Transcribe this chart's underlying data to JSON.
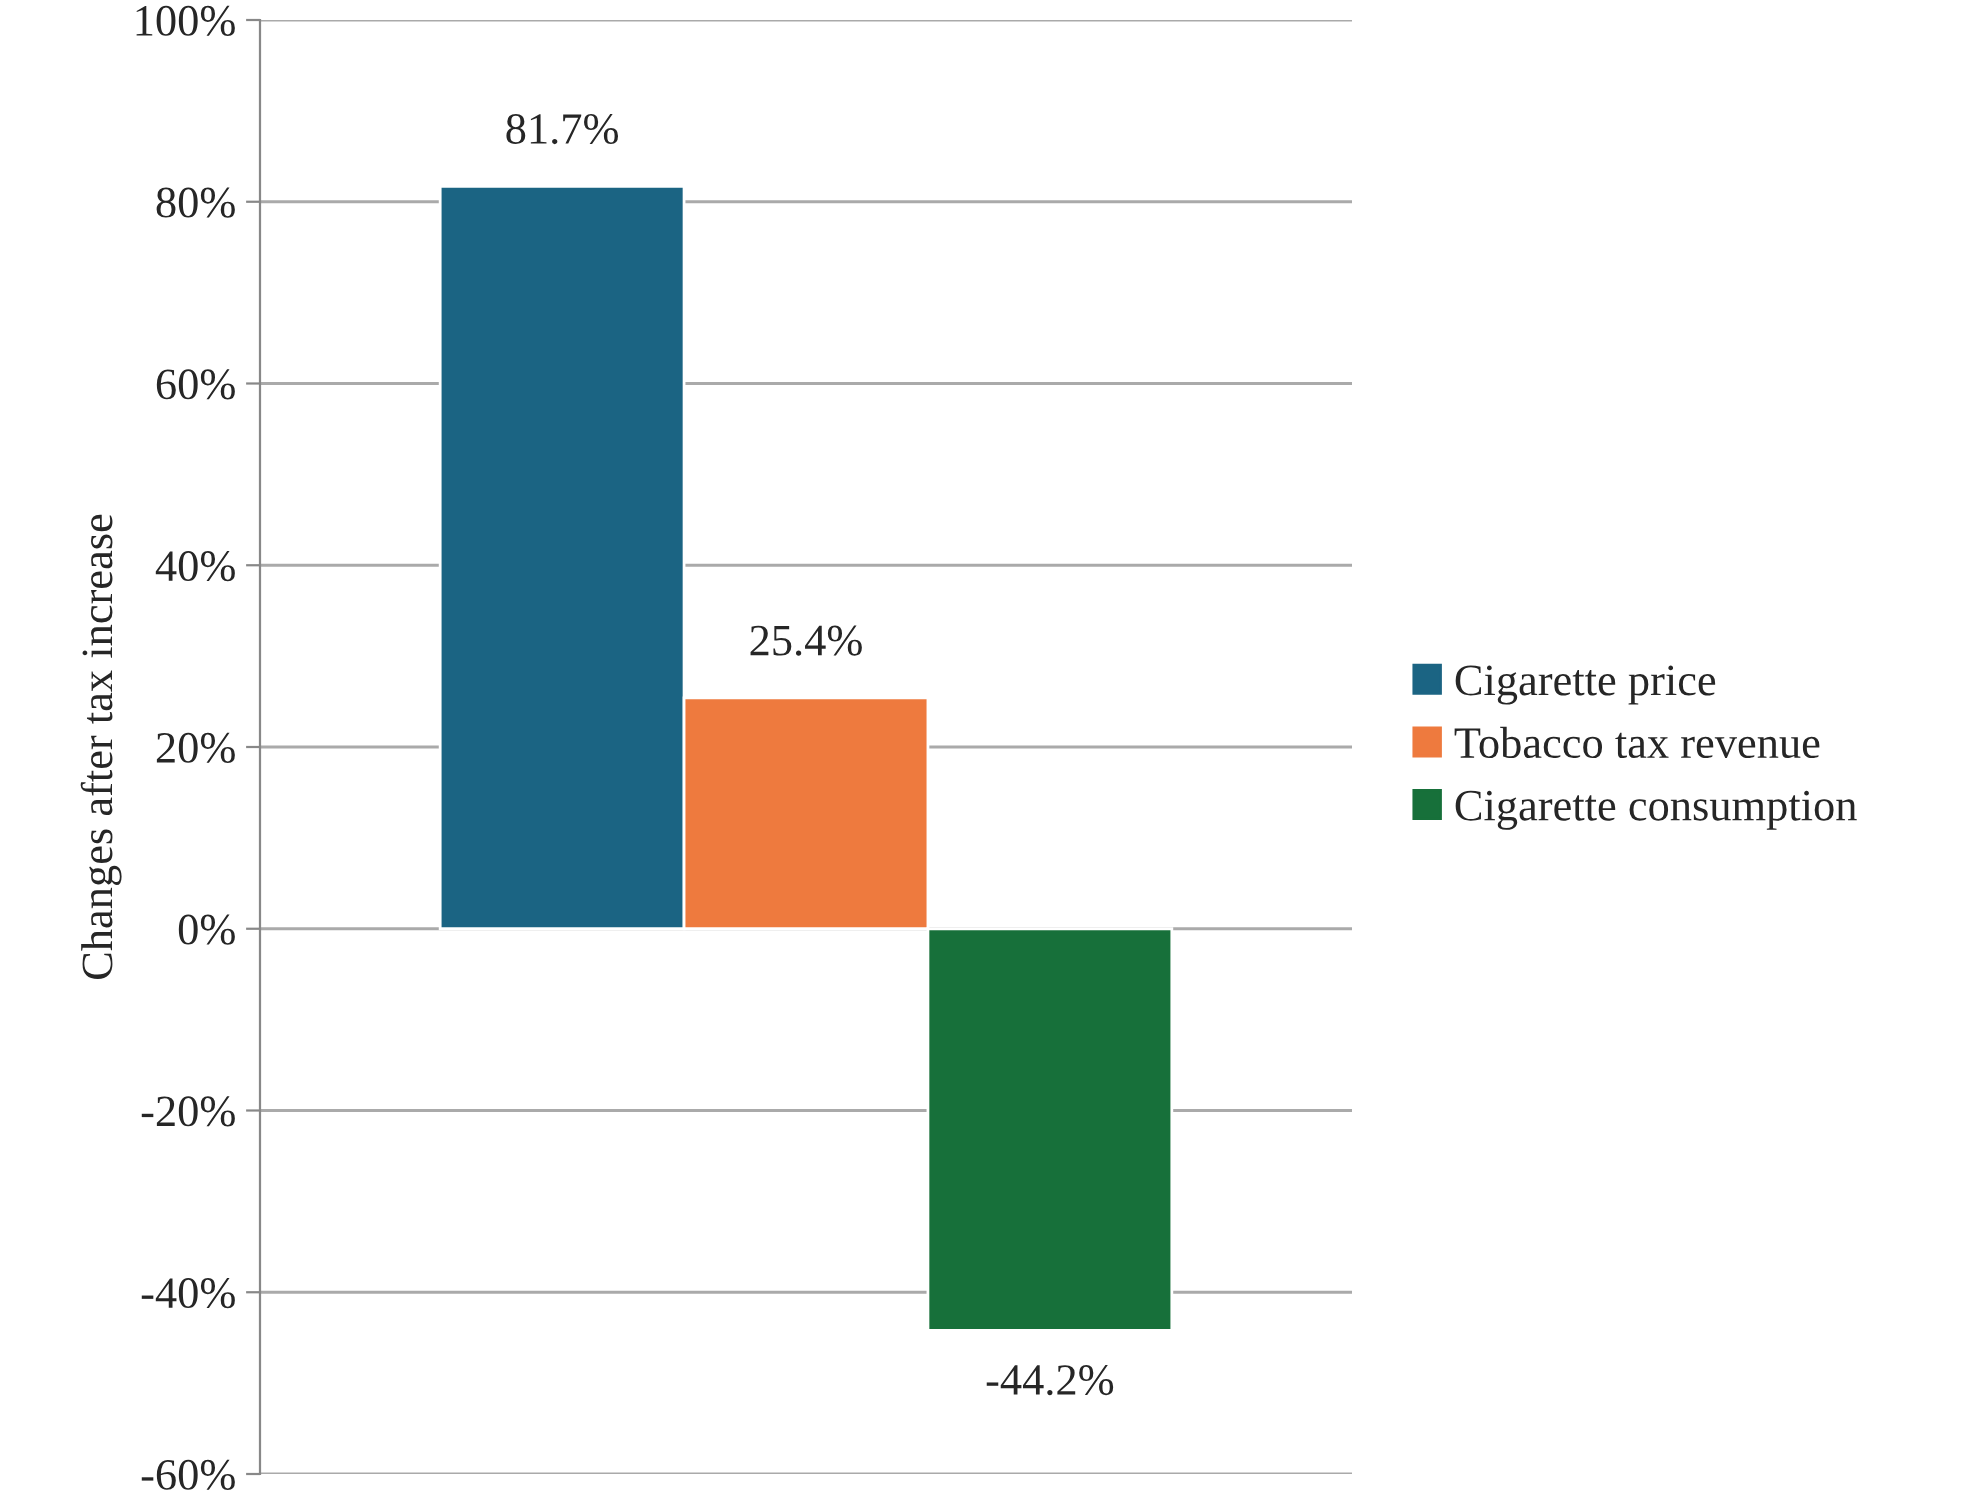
{
  "chart_data": {
    "type": "bar",
    "ylabel": "Changes after tax increase",
    "categories": [
      null
    ],
    "series": [
      {
        "name": "Cigarette price",
        "color": "#1b6483",
        "values": [
          81.7
        ],
        "value_labels": [
          "81.7%"
        ]
      },
      {
        "name": "Tobacco tax revenue",
        "color": "#ee7a3e",
        "values": [
          25.4
        ],
        "value_labels": [
          "25.4%"
        ]
      },
      {
        "name": "Cigarette consumption",
        "color": "#17703a",
        "values": [
          -44.2
        ],
        "value_labels": [
          "-44.2%"
        ]
      }
    ],
    "ylim": [
      -60,
      100
    ],
    "yticks": [
      {
        "value": -60,
        "label": "-60%"
      },
      {
        "value": -40,
        "label": "-40%"
      },
      {
        "value": -20,
        "label": "-20%"
      },
      {
        "value": 0,
        "label": "0%"
      },
      {
        "value": 20,
        "label": "20%"
      },
      {
        "value": 40,
        "label": "40%"
      },
      {
        "value": 60,
        "label": "60%"
      },
      {
        "value": 80,
        "label": "80%"
      },
      {
        "value": 100,
        "label": "100%"
      }
    ],
    "grid": "y",
    "legend": "right"
  }
}
